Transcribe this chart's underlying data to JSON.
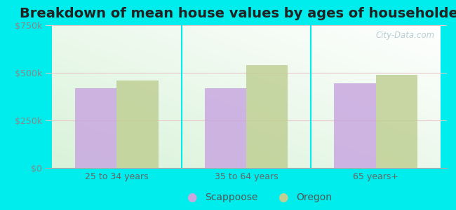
{
  "title": "Breakdown of mean house values by ages of householders",
  "categories": [
    "25 to 34 years",
    "35 to 64 years",
    "65 years+"
  ],
  "scappoose_values": [
    420000,
    420000,
    445000
  ],
  "oregon_values": [
    460000,
    540000,
    490000
  ],
  "ylim": [
    0,
    750000
  ],
  "yticks": [
    0,
    250000,
    500000,
    750000
  ],
  "ytick_labels": [
    "$0",
    "$250k",
    "$500k",
    "$750k"
  ],
  "bar_color_scappoose": "#c9a8e0",
  "bar_color_oregon": "#c0d095",
  "background_color": "#00eded",
  "legend_label_scappoose": "Scappoose",
  "legend_label_oregon": "Oregon",
  "bar_width": 0.32,
  "title_fontsize": 14,
  "axis_fontsize": 9,
  "legend_fontsize": 10,
  "watermark": "City-Data.com",
  "grid_color": "#dddddd",
  "divider_color": "#00eded",
  "tick_color": "#888888",
  "xlabel_color": "#666666"
}
